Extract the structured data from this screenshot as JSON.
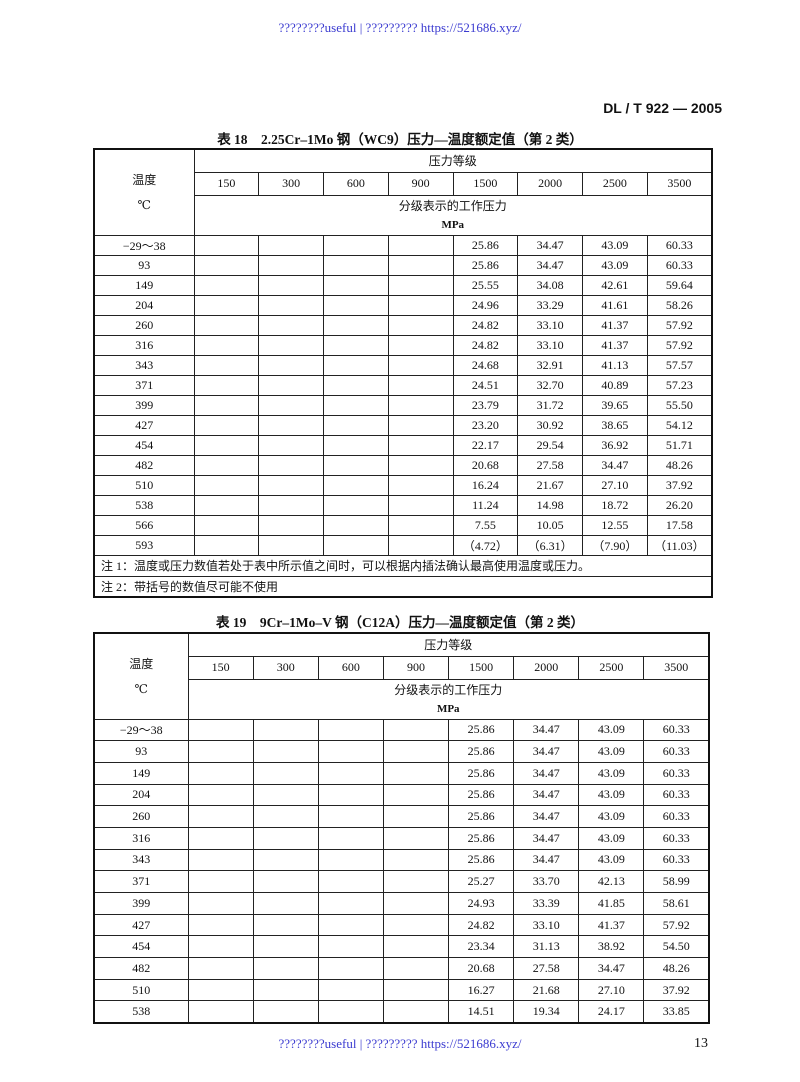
{
  "watermark": "????????useful | ????????? https://521686.xyz/",
  "standard": "DL / T 922 — 2005",
  "page_number": "13",
  "tables": [
    {
      "title": "表 18　2.25Cr–1Mo 钢（WC9）压力—温度额定值（第 2 类）",
      "temp_label": "温度",
      "temp_unit": "℃",
      "grade_label": "压力等级",
      "grades": [
        "150",
        "300",
        "600",
        "900",
        "1500",
        "2000",
        "2500",
        "3500"
      ],
      "pressure_label": "分级表示的工作压力",
      "pressure_unit": "MPa",
      "rows": [
        [
          "−29～38",
          "",
          "",
          "",
          "",
          "25.86",
          "34.47",
          "43.09",
          "60.33"
        ],
        [
          "93",
          "",
          "",
          "",
          "",
          "25.86",
          "34.47",
          "43.09",
          "60.33"
        ],
        [
          "149",
          "",
          "",
          "",
          "",
          "25.55",
          "34.08",
          "42.61",
          "59.64"
        ],
        [
          "204",
          "",
          "",
          "",
          "",
          "24.96",
          "33.29",
          "41.61",
          "58.26"
        ],
        [
          "260",
          "",
          "",
          "",
          "",
          "24.82",
          "33.10",
          "41.37",
          "57.92"
        ],
        [
          "316",
          "",
          "",
          "",
          "",
          "24.82",
          "33.10",
          "41.37",
          "57.92"
        ],
        [
          "343",
          "",
          "",
          "",
          "",
          "24.68",
          "32.91",
          "41.13",
          "57.57"
        ],
        [
          "371",
          "",
          "",
          "",
          "",
          "24.51",
          "32.70",
          "40.89",
          "57.23"
        ],
        [
          "399",
          "",
          "",
          "",
          "",
          "23.79",
          "31.72",
          "39.65",
          "55.50"
        ],
        [
          "427",
          "",
          "",
          "",
          "",
          "23.20",
          "30.92",
          "38.65",
          "54.12"
        ],
        [
          "454",
          "",
          "",
          "",
          "",
          "22.17",
          "29.54",
          "36.92",
          "51.71"
        ],
        [
          "482",
          "",
          "",
          "",
          "",
          "20.68",
          "27.58",
          "34.47",
          "48.26"
        ],
        [
          "510",
          "",
          "",
          "",
          "",
          "16.24",
          "21.67",
          "27.10",
          "37.92"
        ],
        [
          "538",
          "",
          "",
          "",
          "",
          "11.24",
          "14.98",
          "18.72",
          "26.20"
        ],
        [
          "566",
          "",
          "",
          "",
          "",
          "7.55",
          "10.05",
          "12.55",
          "17.58"
        ],
        [
          "593",
          "",
          "",
          "",
          "",
          "（4.72）",
          "（6.31）",
          "（7.90）",
          "（11.03）"
        ]
      ],
      "notes": [
        "注 1：温度或压力数值若处于表中所示值之间时，可以根据内插法确认最高使用温度或压力。",
        "注 2：带括号的数值尽可能不使用"
      ]
    },
    {
      "title": "表 19　9Cr–1Mo–V 钢（C12A）压力—温度额定值（第 2 类）",
      "temp_label": "温度",
      "temp_unit": "℃",
      "grade_label": "压力等级",
      "grades": [
        "150",
        "300",
        "600",
        "900",
        "1500",
        "2000",
        "2500",
        "3500"
      ],
      "pressure_label": "分级表示的工作压力",
      "pressure_unit": "MPa",
      "rows": [
        [
          "−29～38",
          "",
          "",
          "",
          "",
          "25.86",
          "34.47",
          "43.09",
          "60.33"
        ],
        [
          "93",
          "",
          "",
          "",
          "",
          "25.86",
          "34.47",
          "43.09",
          "60.33"
        ],
        [
          "149",
          "",
          "",
          "",
          "",
          "25.86",
          "34.47",
          "43.09",
          "60.33"
        ],
        [
          "204",
          "",
          "",
          "",
          "",
          "25.86",
          "34.47",
          "43.09",
          "60.33"
        ],
        [
          "260",
          "",
          "",
          "",
          "",
          "25.86",
          "34.47",
          "43.09",
          "60.33"
        ],
        [
          "316",
          "",
          "",
          "",
          "",
          "25.86",
          "34.47",
          "43.09",
          "60.33"
        ],
        [
          "343",
          "",
          "",
          "",
          "",
          "25.86",
          "34.47",
          "43.09",
          "60.33"
        ],
        [
          "371",
          "",
          "",
          "",
          "",
          "25.27",
          "33.70",
          "42.13",
          "58.99"
        ],
        [
          "399",
          "",
          "",
          "",
          "",
          "24.93",
          "33.39",
          "41.85",
          "58.61"
        ],
        [
          "427",
          "",
          "",
          "",
          "",
          "24.82",
          "33.10",
          "41.37",
          "57.92"
        ],
        [
          "454",
          "",
          "",
          "",
          "",
          "23.34",
          "31.13",
          "38.92",
          "54.50"
        ],
        [
          "482",
          "",
          "",
          "",
          "",
          "20.68",
          "27.58",
          "34.47",
          "48.26"
        ],
        [
          "510",
          "",
          "",
          "",
          "",
          "16.27",
          "21.68",
          "27.10",
          "37.92"
        ],
        [
          "538",
          "",
          "",
          "",
          "",
          "14.51",
          "19.34",
          "24.17",
          "33.85"
        ]
      ],
      "notes": []
    }
  ]
}
